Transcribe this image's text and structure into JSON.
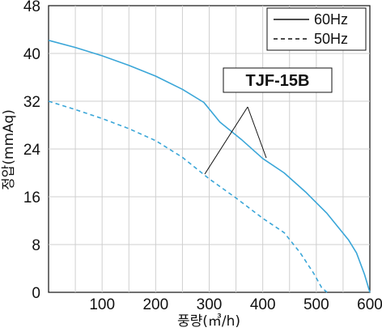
{
  "chart_data": {
    "type": "line",
    "title": "",
    "xlabel": "풍량(㎥/h)",
    "ylabel": "정압(mmAq)",
    "xlim": [
      0,
      600
    ],
    "ylim": [
      0,
      48
    ],
    "xticks": [
      100,
      200,
      300,
      400,
      500,
      600
    ],
    "yticks": [
      0,
      8,
      16,
      24,
      32,
      40,
      48
    ],
    "grid": true,
    "legend_position": "top-right",
    "annotation": "TJF-15B",
    "series": [
      {
        "name": "60Hz",
        "style": "solid",
        "color": "#3aa6d8",
        "x": [
          0,
          50,
          100,
          150,
          200,
          250,
          290,
          320,
          360,
          400,
          440,
          480,
          520,
          560,
          575,
          590,
          600
        ],
        "y": [
          42.2,
          41.0,
          39.6,
          38.0,
          36.2,
          34.0,
          31.8,
          28.5,
          25.6,
          22.4,
          20.0,
          16.8,
          13.2,
          8.8,
          6.6,
          3.0,
          0
        ]
      },
      {
        "name": "50Hz",
        "style": "dashed",
        "color": "#3aa6d8",
        "x": [
          0,
          50,
          100,
          150,
          200,
          250,
          300,
          350,
          400,
          440,
          470,
          495,
          510,
          520
        ],
        "y": [
          32.0,
          30.6,
          29.1,
          27.4,
          25.4,
          22.6,
          19.0,
          15.8,
          12.4,
          10.0,
          6.6,
          3.2,
          0.8,
          0
        ]
      }
    ]
  }
}
